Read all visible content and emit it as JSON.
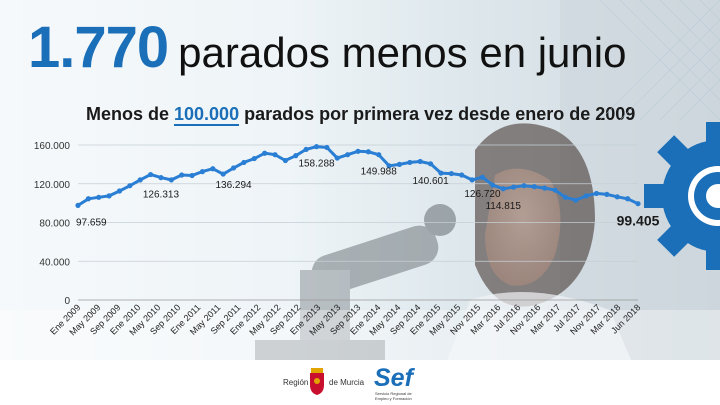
{
  "headline": {
    "number": "1.770",
    "text": "parados menos en junio"
  },
  "subtitle": {
    "prefix": "Menos de ",
    "highlight": "100.000",
    "suffix": " parados por primera vez desde enero de 2009"
  },
  "footer": {
    "region_left": "Región",
    "region_right": "de Murcia",
    "sef_logo": "Sef",
    "sef_sub": "Servicio Regional de Empleo y Formación"
  },
  "colors": {
    "accent": "#1b6fb8",
    "line": "#2a7fd4",
    "gear": "#1b6fb8"
  },
  "chart_data": {
    "type": "line",
    "title": "",
    "ylim": [
      0,
      160000
    ],
    "yticks": [
      0,
      40000,
      80000,
      120000,
      160000
    ],
    "ytick_labels": [
      "0",
      "40.000",
      "80.000",
      "120.000",
      "160.000"
    ],
    "x_labels": [
      "Ene 2009",
      "May 2009",
      "Sep 2009",
      "Ene 2010",
      "May 2010",
      "Sep 2010",
      "Ene 2011",
      "May 2011",
      "Sep 2011",
      "Ene 2012",
      "May 2012",
      "Sep 2012",
      "Ene 2013",
      "May 2013",
      "Sep 2013",
      "Ene 2014",
      "May 2014",
      "Sep 2014",
      "Ene 2015",
      "May 2015",
      "Nov 2015",
      "Mar 2016",
      "Jul 2016",
      "Nov 2016",
      "Mar 2017",
      "Jul 2017",
      "Nov 2017",
      "Mar 2018",
      "Jun 2018"
    ],
    "series": [
      {
        "values": [
          97659,
          104500,
          106000,
          107500,
          112500,
          118000,
          124000,
          129500,
          126313,
          124000,
          129000,
          128500,
          132500,
          135500,
          130000,
          136294,
          142000,
          146000,
          151500,
          150000,
          144000,
          149000,
          155500,
          158288,
          157500,
          146500,
          150000,
          153500,
          153000,
          149988,
          138500,
          140000,
          142000,
          143000,
          140601,
          131000,
          130500,
          129000,
          124000,
          126720,
          118500,
          114815,
          116500,
          118000,
          117000,
          115500,
          113500,
          106000,
          103000,
          107500,
          110000,
          109000,
          106500,
          104500,
          99405
        ]
      }
    ],
    "annotations": [
      {
        "index": 0,
        "label": "97.659",
        "pos": "below"
      },
      {
        "index": 8,
        "label": "126.313",
        "pos": "below"
      },
      {
        "index": 15,
        "label": "136.294",
        "pos": "below"
      },
      {
        "index": 23,
        "label": "158.288",
        "pos": "below"
      },
      {
        "index": 29,
        "label": "149.988",
        "pos": "below"
      },
      {
        "index": 34,
        "label": "140.601",
        "pos": "below"
      },
      {
        "index": 39,
        "label": "126.720",
        "pos": "below"
      },
      {
        "index": 41,
        "label": "114.815",
        "pos": "below"
      },
      {
        "index": 54,
        "label": "99.405",
        "pos": "below",
        "bold": true
      }
    ],
    "grid": true,
    "legend": "none"
  }
}
